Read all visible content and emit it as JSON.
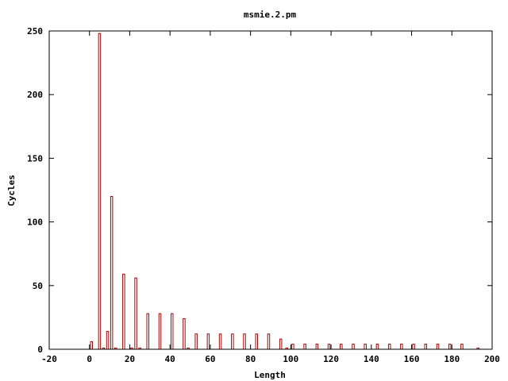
{
  "chart_data": {
    "type": "bar",
    "title": "msmie.2.pm",
    "xlabel": "Length",
    "ylabel": "Cycles",
    "xlim": [
      -20,
      200
    ],
    "ylim": [
      0,
      250
    ],
    "x_ticks": [
      -20,
      0,
      20,
      40,
      60,
      80,
      100,
      120,
      140,
      160,
      180,
      200
    ],
    "y_ticks": [
      0,
      50,
      100,
      150,
      200,
      250
    ],
    "bar_color": "#b00000",
    "grid": false,
    "legend": "none",
    "x": [
      1,
      5,
      7,
      9,
      11,
      13,
      17,
      21,
      23,
      25,
      29,
      35,
      41,
      47,
      49,
      53,
      59,
      65,
      71,
      77,
      83,
      89,
      95,
      98,
      101,
      107,
      113,
      119,
      125,
      131,
      137,
      143,
      149,
      155,
      161,
      167,
      173,
      179,
      185,
      193
    ],
    "values": [
      6,
      248,
      1,
      14,
      120,
      1,
      59,
      1,
      56,
      1,
      28,
      28,
      28,
      24,
      1,
      12,
      12,
      12,
      12,
      12,
      12,
      12,
      8,
      1,
      4,
      4,
      4,
      4,
      4,
      4,
      4,
      4,
      4,
      4,
      4,
      4,
      4,
      4,
      4,
      1
    ]
  }
}
